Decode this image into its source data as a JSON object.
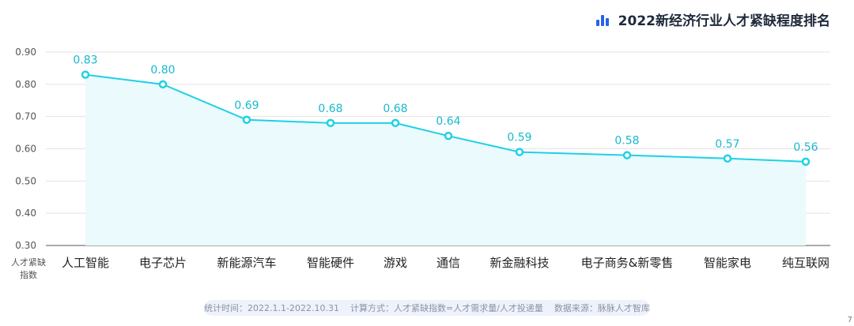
{
  "header": {
    "title": "2022新经济行业人才紧缺程度排名",
    "icon": "bar-chart-icon",
    "accent": "#2563eb"
  },
  "chart_data": {
    "type": "line",
    "title": "2022新经济行业人才紧缺程度排名",
    "ylabel": "人才紧缺指数",
    "categories": [
      "人工智能",
      "电子芯片",
      "新能源汽车",
      "智能硬件",
      "游戏",
      "通信",
      "新金融科技",
      "电子商务&新零售",
      "智能家电",
      "纯互联网"
    ],
    "values": [
      0.83,
      0.8,
      0.69,
      0.68,
      0.68,
      0.64,
      0.59,
      0.58,
      0.57,
      0.56
    ],
    "data_labels": [
      "0.83",
      "0.80",
      "0.69",
      "0.68",
      "0.68",
      "0.64",
      "0.59",
      "0.58",
      "0.57",
      "0.56"
    ],
    "ylim": [
      0.3,
      0.9
    ],
    "yticks": [
      "0.30",
      "0.40",
      "0.50",
      "0.60",
      "0.70",
      "0.80",
      "0.90"
    ],
    "grid": true,
    "line_color": "#1fd0e6",
    "fill_color": "#eafafd"
  },
  "footer": {
    "period": "统计时间：2022.1.1-2022.10.31",
    "method": "计算方式：人才紧缺指数=人才需求量/人才投递量",
    "source": "数据来源：脉脉人才智库"
  },
  "corner_mark": "7"
}
